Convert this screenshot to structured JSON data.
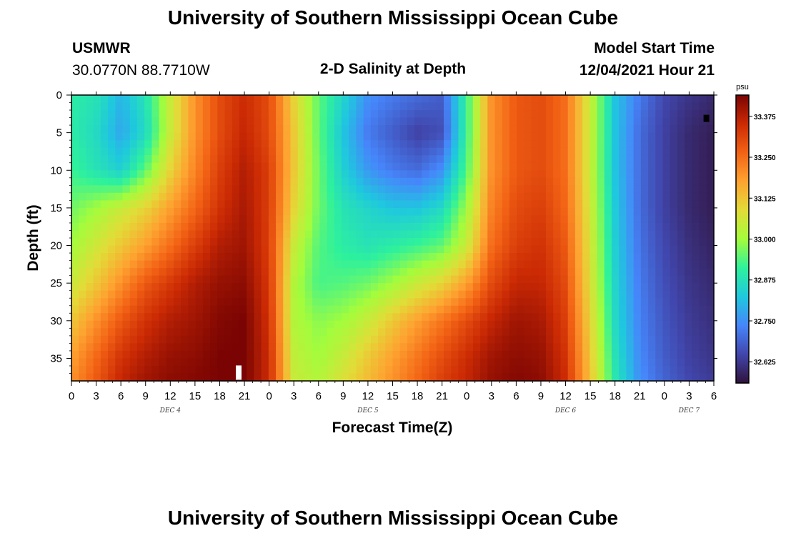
{
  "header": {
    "title": "University of Southern Mississippi Ocean Cube",
    "station": "USMWR",
    "coords": "30.0770N  88.7710W",
    "subtitle": "2-D Salinity at Depth",
    "model_label": "Model Start Time",
    "model_time": "12/04/2021 Hour 21"
  },
  "footer": {
    "title": "University of Southern Mississippi Ocean Cube"
  },
  "chart_data": {
    "type": "heatmap",
    "title": "2-D Salinity at Depth",
    "xlabel": "Forecast Time(Z)",
    "ylabel": "Depth (ft)",
    "x_ticks": [
      "0",
      "3",
      "6",
      "9",
      "12",
      "15",
      "18",
      "21",
      "0",
      "3",
      "6",
      "9",
      "12",
      "15",
      "18",
      "21",
      "0",
      "3",
      "6",
      "9",
      "12",
      "15",
      "18",
      "21",
      "0",
      "3",
      "6"
    ],
    "x_range_hours": [
      0,
      78
    ],
    "y_ticks": [
      0,
      5,
      10,
      15,
      20,
      25,
      30,
      35
    ],
    "y_range_ft": [
      0,
      38
    ],
    "day_labels": [
      {
        "label": "DEC 4",
        "hour": 12
      },
      {
        "label": "DEC 5",
        "hour": 36
      },
      {
        "label": "DEC 6",
        "hour": 60
      },
      {
        "label": "DEC 7",
        "hour": 75
      }
    ],
    "colorbar": {
      "unit": "psu",
      "ticks": [
        33.375,
        33.25,
        33.125,
        33.0,
        32.875,
        32.75,
        32.625
      ],
      "tick_labels": [
        "33.375",
        "33.250",
        "33.125",
        "33.000",
        "32.875",
        "32.750",
        "32.625"
      ],
      "min": 32.56,
      "max": 33.44,
      "colors": [
        "#30123b",
        "#4146ac",
        "#4686fb",
        "#1fc8de",
        "#2ef19c",
        "#a4fc3c",
        "#e2dc38",
        "#fea331",
        "#f36315",
        "#cb2a04",
        "#7a0403"
      ]
    },
    "time_hours": [
      0,
      3,
      6,
      9,
      12,
      15,
      18,
      21,
      24,
      27,
      30,
      33,
      36,
      39,
      42,
      45,
      48,
      51,
      54,
      57,
      60,
      63,
      66,
      69,
      72,
      75,
      78
    ],
    "depth_ft": [
      0,
      5,
      10,
      15,
      20,
      25,
      30,
      35,
      38
    ],
    "salinity_psu": [
      [
        32.9,
        32.88,
        32.8,
        32.88,
        33.05,
        33.2,
        33.3,
        33.35,
        33.3,
        33.1,
        32.95,
        32.85,
        32.75,
        32.72,
        32.7,
        32.68,
        32.92,
        33.2,
        33.28,
        33.3,
        33.25,
        33.05,
        32.82,
        32.72,
        32.65,
        32.62,
        32.6
      ],
      [
        32.9,
        32.86,
        32.78,
        32.86,
        33.05,
        33.2,
        33.3,
        33.36,
        33.3,
        33.12,
        32.95,
        32.82,
        32.72,
        32.68,
        32.64,
        32.66,
        32.92,
        33.2,
        33.28,
        33.3,
        33.25,
        33.05,
        32.82,
        32.7,
        32.64,
        32.6,
        32.58
      ],
      [
        32.92,
        32.88,
        32.84,
        32.95,
        33.1,
        33.22,
        33.32,
        33.38,
        33.32,
        33.12,
        32.96,
        32.84,
        32.76,
        32.72,
        32.7,
        32.75,
        32.94,
        33.2,
        33.28,
        33.3,
        33.25,
        33.05,
        32.82,
        32.7,
        32.64,
        32.6,
        32.58
      ],
      [
        32.96,
        33.0,
        33.05,
        33.1,
        33.18,
        33.26,
        33.34,
        33.39,
        33.32,
        33.1,
        32.96,
        32.88,
        32.85,
        32.82,
        32.82,
        32.86,
        33.0,
        33.22,
        33.3,
        33.32,
        33.26,
        33.06,
        32.83,
        32.7,
        32.64,
        32.6,
        32.58
      ],
      [
        33.0,
        33.06,
        33.12,
        33.18,
        33.25,
        33.32,
        33.38,
        33.4,
        33.32,
        33.05,
        32.94,
        32.9,
        32.88,
        32.9,
        32.92,
        32.95,
        33.05,
        33.25,
        33.32,
        33.34,
        33.28,
        33.07,
        32.84,
        32.71,
        32.65,
        32.61,
        32.59
      ],
      [
        33.05,
        33.12,
        33.2,
        33.28,
        33.33,
        33.38,
        33.41,
        33.42,
        33.33,
        33.02,
        32.93,
        32.94,
        32.96,
        33.0,
        33.05,
        33.1,
        33.18,
        33.3,
        33.36,
        33.36,
        33.3,
        33.08,
        32.85,
        32.72,
        32.66,
        32.62,
        32.6
      ],
      [
        33.12,
        33.2,
        33.28,
        33.34,
        33.38,
        33.4,
        33.43,
        33.44,
        33.34,
        33.02,
        32.98,
        33.0,
        33.05,
        33.12,
        33.18,
        33.24,
        33.3,
        33.36,
        33.4,
        33.39,
        33.32,
        33.1,
        32.86,
        32.73,
        32.67,
        32.63,
        32.61
      ],
      [
        33.18,
        33.26,
        33.34,
        33.38,
        33.41,
        33.42,
        33.44,
        33.44,
        33.35,
        33.04,
        33.0,
        33.05,
        33.12,
        33.18,
        33.24,
        33.3,
        33.35,
        33.4,
        33.42,
        33.41,
        33.34,
        33.12,
        32.88,
        32.74,
        32.68,
        32.64,
        32.62
      ],
      [
        33.2,
        33.28,
        33.36,
        33.4,
        33.42,
        33.43,
        33.44,
        33.44,
        33.35,
        33.05,
        33.02,
        33.08,
        33.14,
        33.2,
        33.26,
        33.32,
        33.36,
        33.41,
        33.43,
        33.42,
        33.35,
        33.13,
        32.89,
        32.75,
        32.69,
        32.65,
        32.63
      ]
    ],
    "markers": [
      {
        "name": "white-marker",
        "hour": 20.3,
        "depth_ft": 36.9,
        "color": "#ffffff"
      },
      {
        "name": "black-marker",
        "hour": 77.1,
        "depth_ft": 3.1,
        "color": "#000000"
      }
    ]
  }
}
